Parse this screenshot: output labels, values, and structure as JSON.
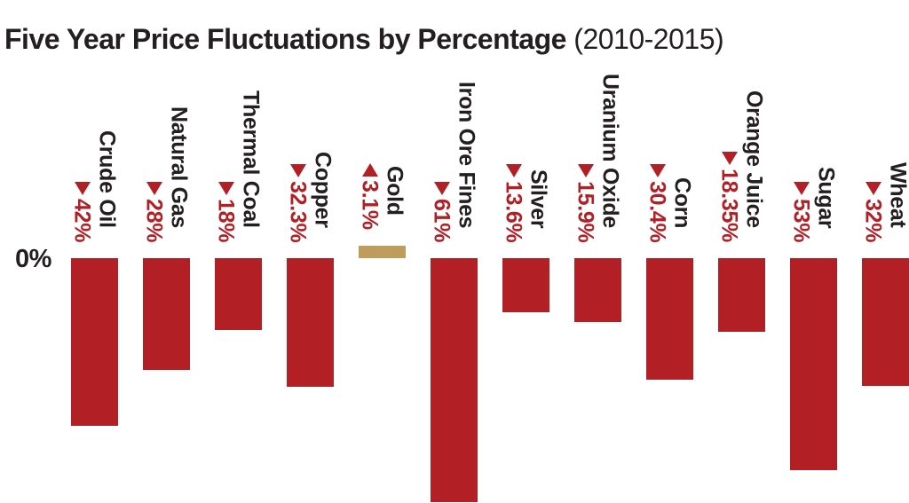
{
  "title": {
    "main": "Five Year Price Fluctuations by Percentage",
    "period": "(2010-2015)"
  },
  "axis": {
    "zero_label": "0%"
  },
  "colors": {
    "bar_negative": "#b22025",
    "bar_positive": "#bf9b5c",
    "ink": "#231f20",
    "pct_text": "#b22025"
  },
  "chart_data": {
    "type": "bar",
    "orientation": "vertical",
    "title": "Five Year Price Fluctuations by Percentage (2010-2015)",
    "baseline": 0,
    "baseline_label": "0%",
    "value_unit": "%",
    "ylim": [
      -61,
      3.1
    ],
    "grid": false,
    "legend": false,
    "categories": [
      "Crude Oil",
      "Natural Gas",
      "Thermal Coal",
      "Copper",
      "Gold",
      "Iron Ore Fines",
      "Silver",
      "Uranium Oxide",
      "Corn",
      "Orange Juice",
      "Sugar",
      "Wheat"
    ],
    "values": [
      -42,
      -28,
      -18,
      -32.3,
      3.1,
      -61,
      -13.6,
      -15.9,
      -30.4,
      -18.35,
      -53,
      -32
    ],
    "display_values": [
      "42%",
      "28%",
      "18%",
      "32.3%",
      "3.1%",
      "61%",
      "13.6%",
      "15.9%",
      "30.4%",
      "18.35%",
      "53%",
      "32%"
    ],
    "directions": [
      "down",
      "down",
      "down",
      "down",
      "up",
      "down",
      "down",
      "down",
      "down",
      "down",
      "down",
      "down"
    ]
  }
}
